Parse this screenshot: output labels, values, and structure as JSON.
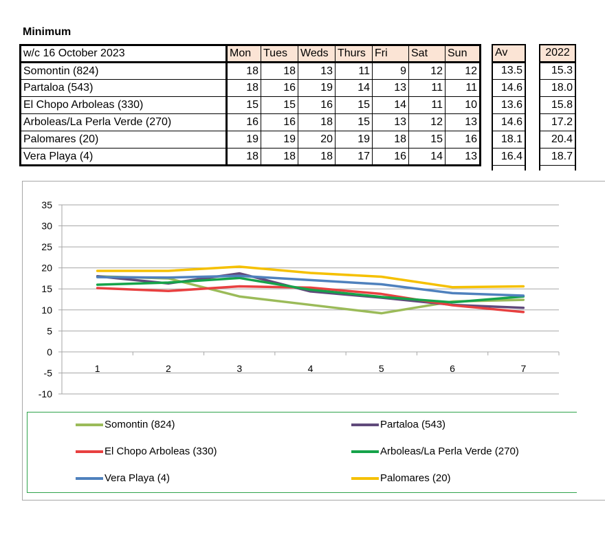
{
  "heading": "Minimum",
  "table": {
    "week_label": "w/c 16 October 2023",
    "days": [
      "Mon",
      "Tues",
      "Weds",
      "Thurs",
      "Fri",
      "Sat",
      "Sun"
    ],
    "av_label": "Av",
    "year_label": "2022",
    "rows": [
      {
        "name": "Somontin (824)",
        "values": [
          18,
          18,
          13,
          11,
          9,
          12,
          12
        ],
        "av": "13.5",
        "year": "15.3"
      },
      {
        "name": "Partaloa (543)",
        "values": [
          18,
          16,
          19,
          14,
          13,
          11,
          11
        ],
        "av": "14.6",
        "year": "18.0"
      },
      {
        "name": "El Chopo Arboleas (330)",
        "values": [
          15,
          15,
          16,
          15,
          14,
          11,
          10
        ],
        "av": "13.6",
        "year": "15.8"
      },
      {
        "name": "Arboleas/La Perla Verde (270)",
        "values": [
          16,
          16,
          18,
          15,
          13,
          12,
          13
        ],
        "av": "14.6",
        "year": "17.2"
      },
      {
        "name": "Palomares (20)",
        "values": [
          19,
          19,
          20,
          19,
          18,
          15,
          16
        ],
        "av": "18.1",
        "year": "20.4"
      },
      {
        "name": "Vera Playa (4)",
        "values": [
          18,
          18,
          18,
          17,
          16,
          14,
          13
        ],
        "av": "16.4",
        "year": "18.7"
      }
    ]
  },
  "chart_data": {
    "type": "line",
    "x": [
      1,
      2,
      3,
      4,
      5,
      6,
      7
    ],
    "ylim": [
      -10,
      35
    ],
    "yticks": [
      -10,
      -5,
      0,
      5,
      10,
      15,
      20,
      25,
      30,
      35
    ],
    "grid": true,
    "legend_position": "bottom",
    "series": [
      {
        "name": "Somontin (824)",
        "color": "#9bbb59",
        "values": [
          18,
          17.5,
          13.2,
          11.2,
          9.2,
          12,
          12.4
        ]
      },
      {
        "name": "Partaloa (543)",
        "color": "#604a7b",
        "values": [
          18,
          16.3,
          18.7,
          14.4,
          12.9,
          11.2,
          10.5
        ]
      },
      {
        "name": "El Chopo Arboleas (330)",
        "color": "#e84040",
        "values": [
          15.2,
          14.5,
          15.6,
          15.3,
          13.8,
          11.1,
          9.5
        ]
      },
      {
        "name": "Arboleas/La Perla Verde (270)",
        "color": "#16a34a",
        "values": [
          16,
          16.5,
          17.6,
          14.8,
          13.1,
          11.8,
          13.2
        ]
      },
      {
        "name": "Vera Playa (4)",
        "color": "#4f81bd",
        "values": [
          17.8,
          17.7,
          18.1,
          17.1,
          16.1,
          14,
          13.4
        ]
      },
      {
        "name": "Palomares (20)",
        "color": "#f5c000",
        "values": [
          19.3,
          19.3,
          20.3,
          18.8,
          17.9,
          15.4,
          15.6
        ]
      }
    ]
  }
}
